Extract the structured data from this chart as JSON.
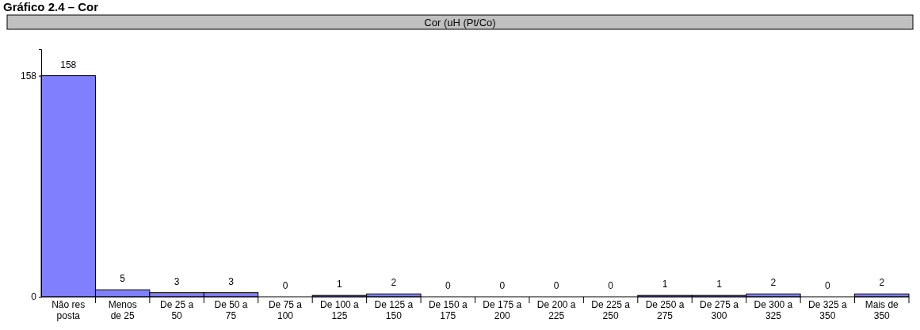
{
  "chart_data": {
    "type": "bar",
    "title": "Gráfico 2.4 – Cor",
    "subtitle": "Cor (uH (Pt/Co)",
    "categories": [
      "Não res posta",
      "Menos de 25",
      "De 25 a 50",
      "De 50 a 75",
      "De 75 a 100",
      "De 100 a 125",
      "De 125 a 150",
      "De 150 a 175",
      "De 175 a 200",
      "De 200 a 225",
      "De 225 a 250",
      "De 250 a 275",
      "De 275 a 300",
      "De 300 a 325",
      "De 325 a 350",
      "Mais de 350"
    ],
    "values": [
      158,
      5,
      3,
      3,
      0,
      1,
      2,
      0,
      0,
      0,
      0,
      1,
      1,
      2,
      0,
      2
    ],
    "color": "#8080ff",
    "ylim": [
      0,
      177
    ],
    "yticks": [
      0,
      158
    ],
    "data_labels": true
  }
}
